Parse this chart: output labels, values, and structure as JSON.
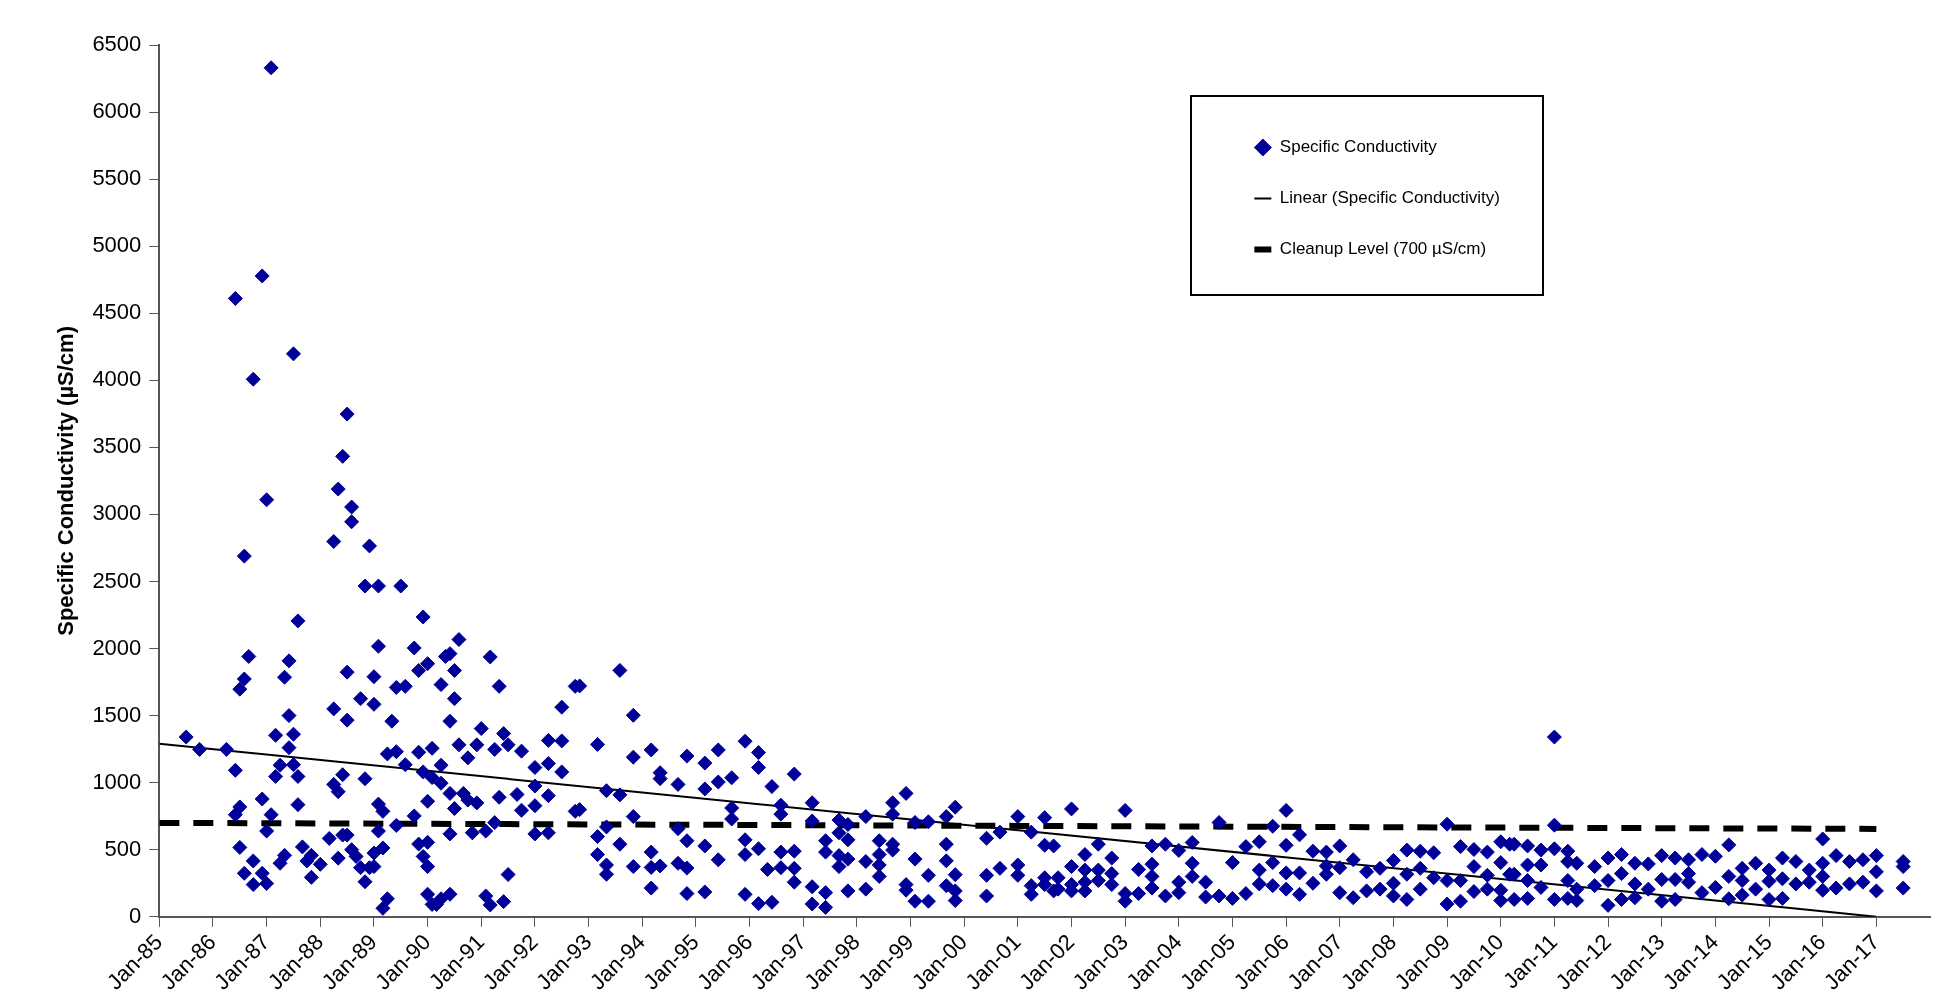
{
  "chart_data": {
    "type": "scatter",
    "ylabel": "Specific Conductivity (µS/cm)",
    "xlim": [
      "1985-01",
      "2018-01"
    ],
    "ylim": [
      0,
      6500
    ],
    "xticks": [
      {
        "value": "1985-01",
        "label": "Jan-85"
      },
      {
        "value": "1986-01",
        "label": "Jan-86"
      },
      {
        "value": "1987-01",
        "label": "Jan-87"
      },
      {
        "value": "1988-01",
        "label": "Jan-88"
      },
      {
        "value": "1989-01",
        "label": "Jan-89"
      },
      {
        "value": "1990-01",
        "label": "Jan-90"
      },
      {
        "value": "1991-01",
        "label": "Jan-91"
      },
      {
        "value": "1992-01",
        "label": "Jan-92"
      },
      {
        "value": "1993-01",
        "label": "Jan-93"
      },
      {
        "value": "1994-01",
        "label": "Jan-94"
      },
      {
        "value": "1995-01",
        "label": "Jan-95"
      },
      {
        "value": "1996-01",
        "label": "Jan-96"
      },
      {
        "value": "1997-01",
        "label": "Jan-97"
      },
      {
        "value": "1998-01",
        "label": "Jan-98"
      },
      {
        "value": "1999-01",
        "label": "Jan-99"
      },
      {
        "value": "2000-01",
        "label": "Jan-00"
      },
      {
        "value": "2001-01",
        "label": "Jan-01"
      },
      {
        "value": "2002-01",
        "label": "Jan-02"
      },
      {
        "value": "2003-01",
        "label": "Jan-03"
      },
      {
        "value": "2004-01",
        "label": "Jan-04"
      },
      {
        "value": "2005-01",
        "label": "Jan-05"
      },
      {
        "value": "2006-01",
        "label": "Jan-06"
      },
      {
        "value": "2007-01",
        "label": "Jan-07"
      },
      {
        "value": "2008-01",
        "label": "Jan-08"
      },
      {
        "value": "2009-01",
        "label": "Jan-09"
      },
      {
        "value": "2010-01",
        "label": "Jan-10"
      },
      {
        "value": "2011-01",
        "label": "Jan-11"
      },
      {
        "value": "2012-01",
        "label": "Jan-12"
      },
      {
        "value": "2013-01",
        "label": "Jan-13"
      },
      {
        "value": "2014-01",
        "label": "Jan-14"
      },
      {
        "value": "2015-01",
        "label": "Jan-15"
      },
      {
        "value": "2016-01",
        "label": "Jan-16"
      },
      {
        "value": "2017-01",
        "label": "Jan-17"
      }
    ],
    "yticks": [
      0,
      500,
      1000,
      1500,
      2000,
      2500,
      3000,
      3500,
      4000,
      4500,
      5000,
      5500,
      6000,
      6500
    ],
    "grid": false,
    "legend": "top right",
    "marker": "diamond",
    "series": [
      {
        "name": "Specific Conductivity",
        "color": "#000099",
        "x": [
          "1987-02",
          "1986-12",
          "1986-06",
          "1986-10",
          "1987-07",
          "1988-07",
          "1988-06",
          "1988-05",
          "1988-08",
          "1988-08",
          "1987-01",
          "1988-04",
          "1988-12",
          "1986-08",
          "1988-11",
          "1989-02",
          "1989-07",
          "1987-08",
          "1989-12",
          "1989-02",
          "1989-10",
          "1990-08",
          "1986-09",
          "1987-06",
          "1986-08",
          "1986-07",
          "1987-05",
          "1988-07",
          "1989-01",
          "1989-11",
          "1990-05",
          "1990-06",
          "1990-01",
          "1991-03",
          "1991-05",
          "1988-04",
          "1988-10",
          "1989-01",
          "1989-06",
          "1989-08",
          "1989-05",
          "1992-07",
          "1992-10",
          "1987-06",
          "1988-07",
          "1990-04",
          "1990-07",
          "1990-07",
          "1990-06",
          "1991-01",
          "1987-03",
          "1985-07",
          "1985-10",
          "1986-04",
          "1987-06",
          "1987-07",
          "1986-06",
          "1987-04",
          "1987-03",
          "1987-07",
          "1987-08",
          "1987-08",
          "1986-12",
          "1986-06",
          "1986-07",
          "1987-02",
          "1987-01",
          "1986-07",
          "1986-10",
          "1986-08",
          "1986-10",
          "1986-12",
          "1987-01",
          "1987-04",
          "1987-05",
          "1987-09",
          "1987-10",
          "1987-11",
          "1987-11",
          "1988-01",
          "1988-03",
          "1988-04",
          "1988-05",
          "1988-06",
          "1988-05",
          "1988-06",
          "1988-07",
          "1988-08",
          "1988-09",
          "1988-10",
          "1988-11",
          "1988-11",
          "1988-12",
          "1989-01",
          "1989-01",
          "1989-02",
          "1989-03",
          "1989-02",
          "1989-03",
          "1989-03",
          "1989-04",
          "1989-04",
          "1989-06",
          "1989-06",
          "1989-08",
          "1989-10",
          "1989-11",
          "1989-11",
          "1989-12",
          "1989-12",
          "1990-01",
          "1990-01",
          "1990-01",
          "1990-01",
          "1990-02",
          "1990-03",
          "1990-04",
          "1990-06",
          "1990-02",
          "1990-04",
          "1990-02",
          "1990-04",
          "1990-06",
          "1990-06",
          "1990-07",
          "1990-08",
          "1990-09",
          "1990-10",
          "1990-10",
          "1990-11",
          "1990-12",
          "1990-12",
          "1991-02",
          "1991-02",
          "1991-03",
          "1991-06",
          "1991-04",
          "1991-05",
          "1991-04",
          "1991-06",
          "1991-07",
          "1991-07",
          "1991-10",
          "1991-09",
          "1991-10",
          "1992-01",
          "1992-01",
          "1992-01",
          "1992-01",
          "1992-04",
          "1992-04",
          "1992-04",
          "1992-04",
          "1992-07",
          "1992-07",
          "1992-10",
          "1992-11",
          "1993-08",
          "1993-11",
          "1993-03",
          "1993-11",
          "1994-03",
          "1994-05",
          "1994-05",
          "1994-09",
          "1994-11",
          "1995-03",
          "1995-06",
          "1995-09",
          "1995-12",
          "1996-03",
          "1996-03",
          "1996-06",
          "1996-11",
          "1993-05",
          "1993-08",
          "1992-11",
          "1993-05",
          "1993-03",
          "1993-03",
          "1993-05",
          "1993-05",
          "1993-08",
          "1993-11",
          "1993-11",
          "1994-03",
          "1994-03",
          "1994-03",
          "1994-05",
          "1994-09",
          "1994-09",
          "1994-11",
          "1994-11",
          "1994-11",
          "1995-03",
          "1995-03",
          "1995-03",
          "1995-06",
          "1995-06",
          "1995-09",
          "1995-09",
          "1995-12",
          "1995-12",
          "1995-12",
          "1996-03",
          "1996-03",
          "1996-05",
          "1996-06",
          "1996-08",
          "1996-08",
          "1996-08",
          "1996-08",
          "1996-11",
          "1996-11",
          "1996-11",
          "1997-03",
          "1997-03",
          "1997-03",
          "1997-03",
          "1997-06",
          "1997-06",
          "1997-06",
          "1997-06",
          "1997-09",
          "1997-09",
          "1997-09",
          "1997-09",
          "1997-11",
          "1997-11",
          "1997-11",
          "1997-11",
          "1998-03",
          "1998-03",
          "1998-03",
          "1998-06",
          "1998-06",
          "1998-06",
          "1998-06",
          "1998-09",
          "1998-09",
          "1998-09",
          "1998-09",
          "1998-12",
          "1998-12",
          "1998-12",
          "1999-02",
          "1999-02",
          "1999-02",
          "1999-05",
          "1999-05",
          "1999-05",
          "1999-09",
          "1999-09",
          "1999-09",
          "1999-09",
          "1999-11",
          "1999-11",
          "1999-11",
          "1999-11",
          "2000-06",
          "2000-06",
          "2000-06",
          "2000-09",
          "2000-09",
          "2001-01",
          "2001-01",
          "2001-01",
          "2001-04",
          "2001-04",
          "2001-04",
          "2001-07",
          "2001-07",
          "2001-07",
          "2001-09",
          "2001-09",
          "2001-07",
          "2001-10",
          "2001-10",
          "2002-01",
          "2002-01",
          "2002-01",
          "2002-01",
          "2002-04",
          "2002-04",
          "2002-04",
          "2002-04",
          "2002-07",
          "2002-07",
          "2002-07",
          "2002-10",
          "2002-10",
          "2002-10",
          "2003-01",
          "2003-01",
          "2003-01",
          "2003-04",
          "2003-04",
          "2003-07",
          "2003-07",
          "2003-07",
          "2003-07",
          "2003-10",
          "2003-10",
          "2004-01",
          "2004-01",
          "2004-01",
          "2004-04",
          "2004-04",
          "2004-04",
          "2004-07",
          "2004-07",
          "2004-10",
          "2004-10",
          "2005-01",
          "2005-01",
          "2005-04",
          "2005-04",
          "2005-07",
          "2005-07",
          "2005-07",
          "2005-10",
          "2005-10",
          "2005-10",
          "2006-01",
          "2006-01",
          "2006-01",
          "2006-01",
          "2006-04",
          "2006-04",
          "2006-04",
          "2006-07",
          "2006-07",
          "2006-10",
          "2006-10",
          "2006-10",
          "2007-01",
          "2007-01",
          "2007-01",
          "2007-04",
          "2007-04",
          "2007-07",
          "2007-07",
          "2007-10",
          "2007-10",
          "2008-01",
          "2008-01",
          "2008-01",
          "2008-04",
          "2008-04",
          "2008-04",
          "2008-07",
          "2008-07",
          "2008-07",
          "2008-10",
          "2008-10",
          "2009-01",
          "2009-01",
          "2009-01",
          "2009-04",
          "2009-04",
          "2009-04",
          "2009-07",
          "2009-07",
          "2009-07",
          "2009-10",
          "2009-10",
          "2009-10",
          "2010-01",
          "2010-01",
          "2010-01",
          "2010-01",
          "2010-03",
          "2010-03",
          "2011-01",
          "2011-01",
          "2010-04",
          "2010-07",
          "2010-10",
          "2011-01",
          "2011-04",
          "2010-04",
          "2010-07",
          "2010-10",
          "2010-04",
          "2010-07",
          "2010-07",
          "2010-10",
          "2011-01",
          "2011-04",
          "2011-04",
          "2011-04",
          "2011-06",
          "2011-06",
          "2011-06",
          "2011-10",
          "2011-10",
          "2012-01",
          "2012-01",
          "2012-01",
          "2012-04",
          "2012-04",
          "2012-04",
          "2012-07",
          "2012-07",
          "2012-07",
          "2012-10",
          "2012-10",
          "2013-01",
          "2013-01",
          "2013-01",
          "2013-04",
          "2013-04",
          "2013-04",
          "2013-07",
          "2013-07",
          "2013-07",
          "2013-10",
          "2013-10",
          "2014-01",
          "2014-01",
          "2014-04",
          "2014-04",
          "2014-04",
          "2014-07",
          "2014-07",
          "2014-07",
          "2014-10",
          "2014-10",
          "2015-01",
          "2015-01",
          "2015-01",
          "2015-04",
          "2015-04",
          "2015-04",
          "2015-07",
          "2015-07",
          "2015-10",
          "2015-10",
          "2016-01",
          "2016-01",
          "2016-01",
          "2016-01",
          "2016-04",
          "2016-04",
          "2016-07",
          "2016-07",
          "2016-10",
          "2016-10",
          "2017-01",
          "2017-01",
          "2017-01",
          "2017-07",
          "2017-07",
          "2017-07"
        ],
        "values": [
          6330,
          4778,
          4610,
          4008,
          4197,
          3748,
          3433,
          3189,
          3055,
          2945,
          3109,
          2798,
          2765,
          2689,
          2466,
          2466,
          2466,
          2206,
          2235,
          2017,
          2004,
          2067,
          1941,
          1908,
          1773,
          1697,
          1786,
          1824,
          1790,
          1836,
          1941,
          1962,
          1887,
          1937,
          1718,
          1550,
          1626,
          1584,
          1710,
          1718,
          1458,
          1563,
          1718,
          1500,
          1466,
          1731,
          1836,
          1626,
          1458,
          1403,
          1353,
          1340,
          1248,
          1248,
          1261,
          1361,
          1092,
          1130,
          1046,
          1134,
          1046,
          836,
          878,
          761,
          819,
          761,
          639,
          517,
          416,
          324,
          240,
          324,
          248,
          399,
          458,
          521,
          416,
          294,
          458,
          391,
          584,
          987,
          933,
          1059,
          437,
          609,
          609,
          500,
          450,
          366,
          261,
          1029,
          366,
          374,
          475,
          840,
          513,
          639,
          786,
          63,
          134,
          1214,
          1231,
          681,
          1134,
          752,
          1227,
          542,
          1080,
          450,
          374,
          861,
          555,
          168,
          92,
          92,
          134,
          168,
          1256,
          1130,
          1038,
          996,
          920,
          618,
          807,
          1282,
          920,
          1185,
          870,
          626,
          1282,
          849,
          639,
          155,
          88,
          113,
          702,
          891,
          1248,
          1366,
          1282,
          315,
          1235,
          912,
          794,
          1113,
          975,
          828,
          618,
          1315,
          1143,
          903,
          626,
          1311,
          1080,
          786,
          1721,
          1837,
          1502,
          1285,
          1190,
          1244,
          1074,
          1030,
          987,
          1198,
          1146,
          1244,
          1036,
          1309,
          1224,
          1113,
          971,
          1064,
          940,
          909,
          799,
          670,
          598,
          464,
          386,
          317,
          541,
          747,
          374,
          482,
          368,
          214,
          379,
          657,
          399,
          567,
          363,
          173,
          953,
          528,
          185,
          1005,
          425,
          811,
          729,
          574,
          464,
          167,
          507,
          98,
          353,
          108,
          832,
          765,
          482,
          366,
          489,
          361,
          258,
          850,
          714,
          224,
          95,
          567,
          482,
          180,
          70,
          721,
          626,
          456,
          374,
          688,
          574,
          430,
          193,
          747,
          412,
          206,
          567,
          464,
          386,
          301,
          850,
          765,
          541,
          497,
          920,
          240,
          198,
          703,
          430,
          116,
          708,
          309,
          116,
          747,
          541,
          417,
          232,
          817,
          314,
          193,
          121,
          585,
          309,
          155,
          631,
          361,
          747,
          386,
          309,
          631,
          232,
          167,
          739,
          533,
          291,
          528,
          193,
          240,
          291,
          206,
          804,
          374,
          240,
          193,
          464,
          348,
          258,
          193,
          541,
          348,
          270,
          438,
          322,
          240,
          793,
          173,
          116,
          353,
          173,
          528,
          392,
          301,
          214,
          541,
          155,
          495,
          258,
          180,
          554,
          399,
          301,
          258,
          147,
          703,
          155,
          404,
          137,
          523,
          173,
          559,
          348,
          245,
          675,
          404,
          232,
          793,
          533,
          327,
          206,
          611,
          327,
          167,
          489,
          250,
          482,
          379,
          317,
          528,
          366,
          180,
          425,
          142,
          335,
          193,
          361,
          206,
          420,
          250,
          155,
          497,
          317,
          129,
          489,
          361,
          206,
          477,
          291,
          690,
          270,
          95,
          523,
          270,
          116,
          502,
          374,
          188,
          482,
          309,
          206,
          559,
          404,
          198,
          121,
          541,
          317,
          1340,
          683,
          541,
          528,
          497,
          507,
          489,
          317,
          386,
          386,
          129,
          270,
          137,
          219,
          129,
          412,
          270,
          137,
          399,
          206,
          121,
          374,
          232,
          438,
          270,
          85,
          464,
          322,
          129,
          399,
          245,
          142,
          394,
          206,
          456,
          278,
          116,
          438,
          278,
          129,
          425,
          322,
          258,
          464,
          180,
          451,
          219,
          536,
          301,
          134,
          361,
          270,
          162,
          399,
          206,
          348,
          265,
          129,
          438,
          283,
          137,
          412,
          245,
          348,
          258,
          580,
          399,
          301,
          198,
          456,
          214,
          412,
          245,
          425,
          258,
          456,
          335,
          193,
          412,
          374,
          214
        ]
      },
      {
        "name": "Linear (Specific Conductivity)",
        "type": "line",
        "color": "#000000",
        "line_style": "solid",
        "marker": "none",
        "x": [
          "1985-01",
          "2017-01"
        ],
        "values": [
          1290,
          0
        ]
      },
      {
        "name": "Cleanup Level (700 µS/cm)",
        "type": "line",
        "color": "#000000",
        "line_style": "dashed",
        "marker": "none",
        "x": [
          "1985-01",
          "2017-01"
        ],
        "values": [
          700,
          655
        ]
      }
    ]
  }
}
